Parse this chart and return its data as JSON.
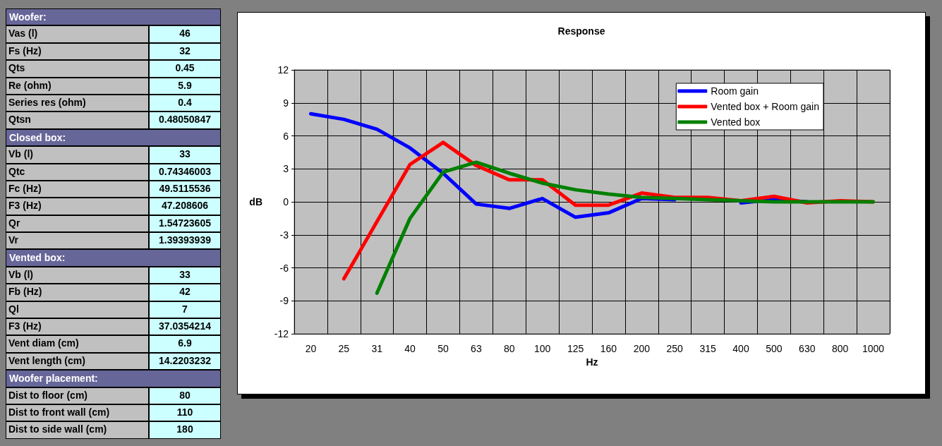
{
  "chart_data": [
    {
      "type": "other",
      "title": "Woofer:",
      "categories": [
        "Vas (l)",
        "Fs (Hz)",
        "Qts",
        "Re (ohm)",
        "Series res (ohm)",
        "Qtsn"
      ],
      "values": [
        46,
        32,
        0.45,
        5.9,
        0.4,
        0.48050847
      ],
      "data_labels": true
    },
    {
      "type": "other",
      "title": "Closed box:",
      "categories": [
        "Vb (l)",
        "Qtc",
        "Fc (Hz)",
        "F3 (Hz)",
        "Qr",
        "Vr"
      ],
      "values": [
        33,
        0.74346003,
        49.5115536,
        47.208606,
        1.54723605,
        1.39393939
      ],
      "data_labels": true
    },
    {
      "type": "other",
      "title": "Vented box:",
      "categories": [
        "Vb (l)",
        "Fb (Hz)",
        "Ql",
        "F3 (Hz)",
        "Vent diam (cm)",
        "Vent length (cm)"
      ],
      "values": [
        33,
        42,
        7,
        37.0354214,
        6.9,
        14.2203232
      ],
      "data_labels": true
    },
    {
      "type": "other",
      "title": "Woofer placement:",
      "categories": [
        "Dist to floor (cm)",
        "Dist to front wall (cm)",
        "Dist to side wall (cm)"
      ],
      "values": [
        80,
        110,
        180
      ],
      "data_labels": true
    },
    {
      "type": "line",
      "title": "Response",
      "xlabel": "Hz",
      "ylabel": "dB",
      "categories": [
        "20",
        "25",
        "31",
        "40",
        "50",
        "63",
        "80",
        "100",
        "125",
        "160",
        "200",
        "250",
        "315",
        "400",
        "500",
        "630",
        "800",
        "1000"
      ],
      "ylim": [
        -12,
        12
      ],
      "yticks": [
        -12,
        -9,
        -6,
        -3,
        0,
        3,
        6,
        9,
        12
      ],
      "grid": true,
      "legend": "top right",
      "marker": "none",
      "line_style": "solid",
      "series": [
        {
          "name": "Room gain",
          "color": "#0000ff",
          "values": [
            8.0,
            7.5,
            6.6,
            4.9,
            2.6,
            -0.2,
            -0.6,
            0.3,
            -1.4,
            -1.0,
            0.3,
            0.2,
            null,
            -0.1,
            0.2,
            0.0,
            null,
            null
          ]
        },
        {
          "name": "Vented box + Room gain",
          "color": "#ff0000",
          "values": [
            null,
            -7.0,
            -1.8,
            3.4,
            5.4,
            3.3,
            2.0,
            2.0,
            -0.3,
            -0.3,
            0.8,
            0.4,
            0.4,
            0.1,
            0.5,
            -0.1,
            0.1,
            0.0
          ]
        },
        {
          "name": "Vented box",
          "color": "#008000",
          "values": [
            null,
            null,
            -8.3,
            -1.5,
            2.7,
            3.6,
            2.6,
            1.7,
            1.1,
            0.7,
            0.4,
            0.3,
            0.2,
            0.1,
            0.0,
            0.0,
            0.0,
            0.0
          ]
        }
      ]
    }
  ]
}
